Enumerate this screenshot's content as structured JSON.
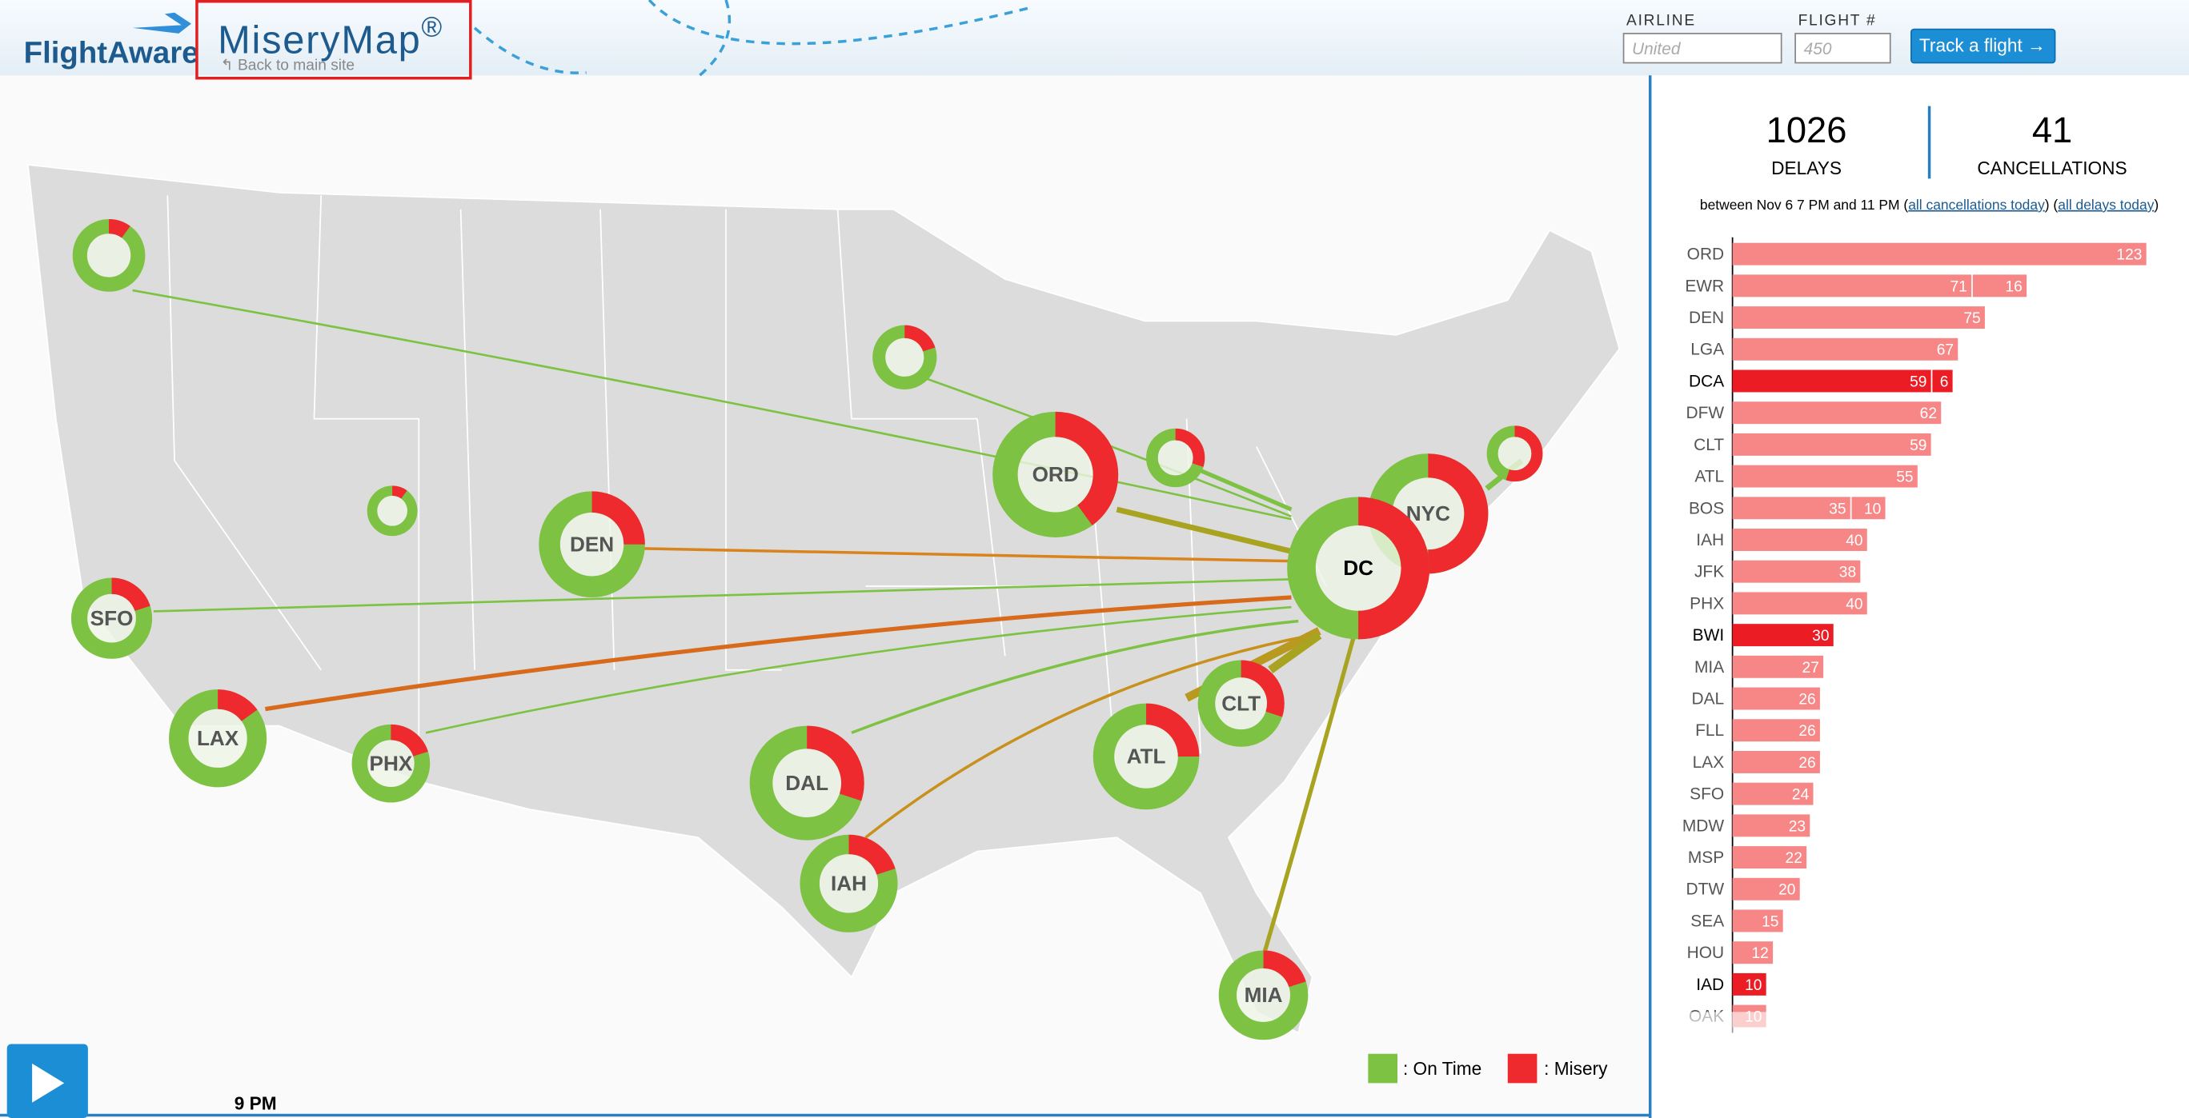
{
  "header": {
    "logo": "FlightAware",
    "product": "MiseryMap",
    "registered": "®",
    "back_link": "Back to main site",
    "airline_label": "AIRLINE",
    "airline_placeholder": "United",
    "flight_label": "FLIGHT #",
    "flight_placeholder": "450",
    "button": "Track a flight →"
  },
  "stats": {
    "delays": 1026,
    "delays_label": "DELAYS",
    "cancellations": 41,
    "cancellations_label": "CANCELLATIONS",
    "period": "between Nov 6 7 PM and 11 PM (",
    "link_cancellations": "all cancellations today",
    "between_links": ") (",
    "link_delays": "all delays today",
    "closing": ")"
  },
  "airports": [
    {
      "airport": "ORD",
      "delays": 123
    },
    {
      "airport": "EWR",
      "delays": 71,
      "cancellations": 16
    },
    {
      "airport": "DEN",
      "delays": 75
    },
    {
      "airport": "LGA",
      "delays": 67
    },
    {
      "airport": "DCA",
      "delays": 59,
      "cancellations": 6,
      "highlight": true
    },
    {
      "airport": "DFW",
      "delays": 62
    },
    {
      "airport": "CLT",
      "delays": 59
    },
    {
      "airport": "ATL",
      "delays": 55
    },
    {
      "airport": "BOS",
      "delays": 35,
      "cancellations": 10
    },
    {
      "airport": "IAH",
      "delays": 40
    },
    {
      "airport": "JFK",
      "delays": 38
    },
    {
      "airport": "PHX",
      "delays": 40
    },
    {
      "airport": "BWI",
      "delays": 30,
      "highlight": true
    },
    {
      "airport": "MIA",
      "delays": 27
    },
    {
      "airport": "DAL",
      "delays": 26
    },
    {
      "airport": "FLL",
      "delays": 26
    },
    {
      "airport": "LAX",
      "delays": 26
    },
    {
      "airport": "SFO",
      "delays": 24
    },
    {
      "airport": "MDW",
      "delays": 23
    },
    {
      "airport": "MSP",
      "delays": 22
    },
    {
      "airport": "DTW",
      "delays": 20
    },
    {
      "airport": "SEA",
      "delays": 15
    },
    {
      "airport": "HOU",
      "delays": 12
    },
    {
      "airport": "IAD",
      "delays": 10,
      "highlight": true
    },
    {
      "airport": "OAK",
      "delays": 10
    }
  ],
  "hubs": [
    {
      "misery_share": 0.1
    },
    {
      "misery_share": 0.2
    },
    {
      "misery_share": 0.1
    },
    {
      "label": "ORD",
      "misery_share": 0.4
    },
    {
      "misery_share": 0.3
    },
    {
      "misery_share": 0.55
    },
    {
      "label": "NYC",
      "misery_share": 0.5
    },
    {
      "label": "DC",
      "misery_share": 0.5
    },
    {
      "label": "DEN",
      "misery_share": 0.25
    },
    {
      "label": "SFO",
      "misery_share": 0.2
    },
    {
      "label": "LAX",
      "misery_share": 0.15
    },
    {
      "label": "PHX",
      "misery_share": 0.2
    },
    {
      "label": "DAL",
      "misery_share": 0.3
    },
    {
      "label": "IAH",
      "misery_share": 0.2
    },
    {
      "label": "ATL",
      "misery_share": 0.25
    },
    {
      "label": "CLT",
      "misery_share": 0.3
    },
    {
      "label": "MIA",
      "misery_share": 0.2
    }
  ],
  "legend": {
    "on_time": ": On Time",
    "misery": ": Misery"
  },
  "time": "9 PM"
}
